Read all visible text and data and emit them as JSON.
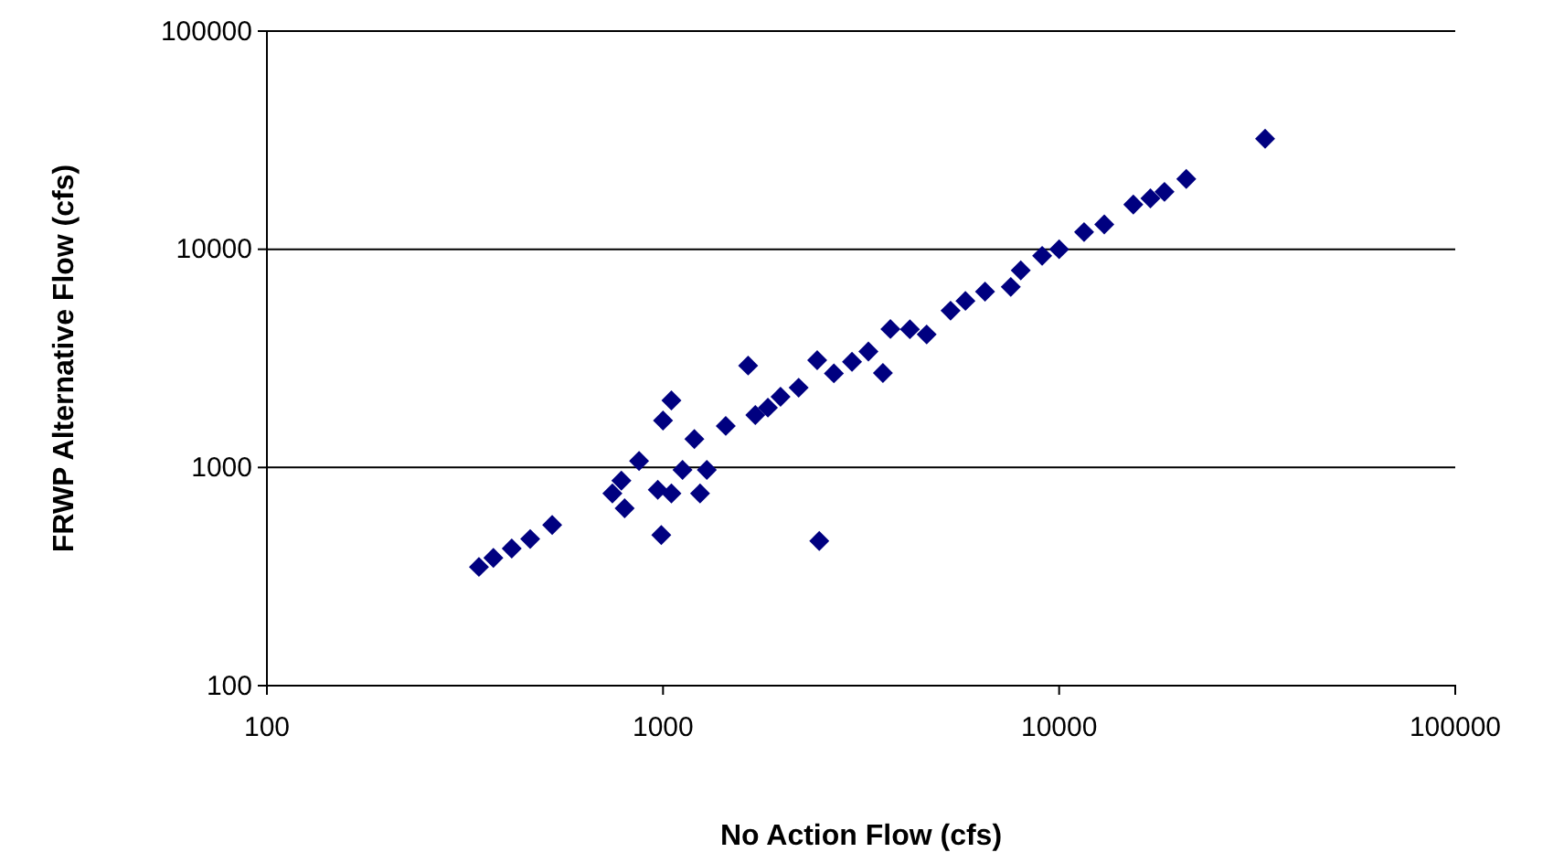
{
  "chart_data": {
    "type": "scatter",
    "xlabel": "No Action Flow (cfs)",
    "ylabel": "FRWP Alternative Flow (cfs)",
    "log": "xy",
    "grid": "y",
    "marker": "diamond",
    "xlim": [
      100,
      100000
    ],
    "ylim": [
      100,
      100000
    ],
    "xticks": [
      100,
      1000,
      10000,
      100000
    ],
    "yticks": [
      100,
      1000,
      10000,
      100000
    ],
    "series": [
      {
        "color": "#000080",
        "x": [
          343,
          373,
          415,
          462,
          525,
          745,
          800,
          785,
          870,
          990,
          1050,
          1000,
          970,
          1050,
          1240,
          1290,
          1120,
          1200,
          1440,
          1640,
          1710,
          1980,
          2200,
          2480,
          1840,
          2450,
          3590,
          3750,
          4630,
          5320,
          7550,
          9060,
          11560,
          15390,
          18450,
          20940,
          33110,
          2700,
          3000,
          3300,
          4200,
          5800,
          6500,
          8000,
          10000,
          13000,
          17000
        ],
        "values": [
          350,
          385,
          425,
          470,
          545,
          760,
          650,
          870,
          1070,
          490,
          2030,
          1640,
          790,
          760,
          760,
          975,
          975,
          1350,
          1550,
          2930,
          1740,
          2110,
          2320,
          460,
          1880,
          3100,
          2710,
          4310,
          4070,
          5230,
          6720,
          9330,
          11990,
          16020,
          18330,
          20990,
          32090,
          2700,
          3050,
          3400,
          4300,
          5800,
          6400,
          8000,
          10000,
          13000,
          17100
        ]
      }
    ]
  }
}
